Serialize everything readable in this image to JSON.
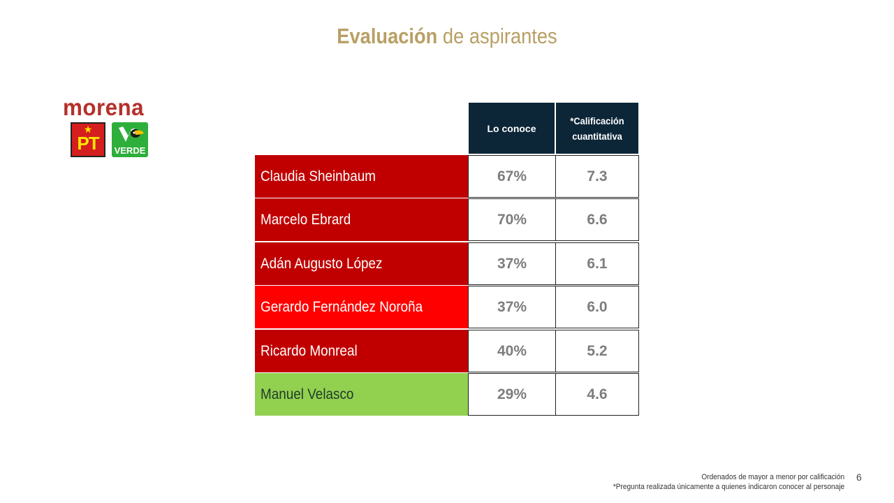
{
  "title": {
    "bold": "Evaluación",
    "rest": " de aspirantes"
  },
  "logos": {
    "morena": "morena",
    "pt": "PT",
    "verde": "VERDE"
  },
  "table": {
    "headers": [
      "Lo conoce",
      "*Calificación cuantitativa"
    ],
    "rows": [
      {
        "name": "Claudia Sheinbaum",
        "conoce": "67%",
        "calificacion": "7.3",
        "color": "#c00000",
        "text_color": "#ffffff"
      },
      {
        "name": "Marcelo Ebrard",
        "conoce": "70%",
        "calificacion": "6.6",
        "color": "#c00000",
        "text_color": "#ffffff"
      },
      {
        "name": "Adán Augusto López",
        "conoce": "37%",
        "calificacion": "6.1",
        "color": "#c00000",
        "text_color": "#ffffff"
      },
      {
        "name": "Gerardo Fernández Noroña",
        "conoce": "37%",
        "calificacion": "6.0",
        "color": "#ff0000",
        "text_color": "#ffffff"
      },
      {
        "name": "Ricardo Monreal",
        "conoce": "40%",
        "calificacion": "5.2",
        "color": "#c00000",
        "text_color": "#ffffff"
      },
      {
        "name": "Manuel Velasco",
        "conoce": "29%",
        "calificacion": "4.6",
        "color": "#92d050",
        "text_color": "#1f3a2a"
      }
    ]
  },
  "footer": {
    "line1": "Ordenados de mayor a menor por calificación",
    "line2": "*Pregunta realizada únicamente a quienes indicaron conocer al personaje"
  },
  "page_number": "6"
}
